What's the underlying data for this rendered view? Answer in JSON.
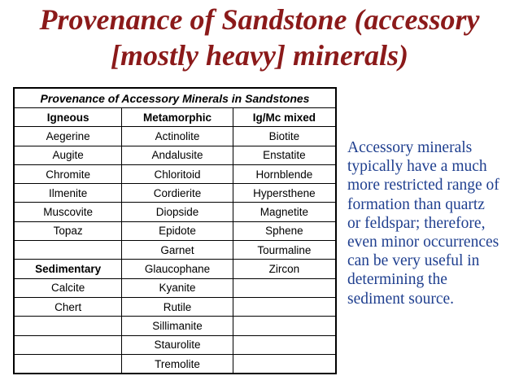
{
  "title": {
    "lines": [
      "Provenance of Sandstone (accessory",
      "[mostly heavy] minerals)"
    ]
  },
  "table": {
    "caption": "Provenance of Accessory Minerals in Sandstones",
    "header": [
      "Igneous",
      "Metamorphic",
      "Ig/Mc mixed"
    ],
    "rows": [
      [
        "Aegerine",
        "Actinolite",
        "Biotite"
      ],
      [
        "Augite",
        "Andalusite",
        "Enstatite"
      ],
      [
        "Chromite",
        "Chloritoid",
        "Hornblende"
      ],
      [
        "Ilmenite",
        "Cordierite",
        "Hypersthene"
      ],
      [
        "Muscovite",
        "Diopside",
        "Magnetite"
      ],
      [
        "Topaz",
        "Epidote",
        "Sphene"
      ],
      [
        null,
        "Garnet",
        "Tourmaline"
      ],
      [
        "Sedimentary",
        "Glaucophane",
        "Zircon"
      ],
      [
        "Calcite",
        "Kyanite",
        null
      ],
      [
        "Chert",
        "Rutile",
        null
      ],
      [
        null,
        "Sillimanite",
        null
      ],
      [
        null,
        "Staurolite",
        null
      ],
      [
        null,
        "Tremolite",
        null
      ]
    ]
  },
  "side_text": {
    "lines": [
      "Accessory minerals",
      "typically have a much",
      "more restricted range of",
      "formation than quartz",
      "or feldspar; therefore,",
      "even minor occurrences",
      "can be very useful in",
      "determining the",
      "sediment source."
    ]
  }
}
